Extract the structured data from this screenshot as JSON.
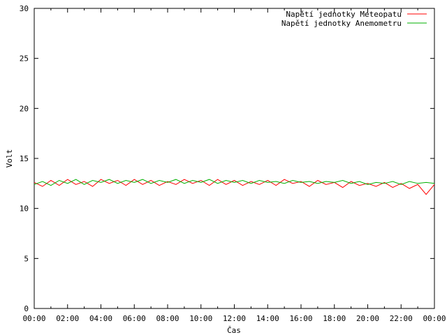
{
  "chart_data": {
    "type": "line",
    "xlabel": "Čas",
    "ylabel": "Volt",
    "ylim": [
      0,
      30
    ],
    "yticks": [
      0,
      5,
      10,
      15,
      20,
      25,
      30
    ],
    "xlim": [
      0,
      24
    ],
    "xticks": [
      {
        "value": 0,
        "label": "00:00"
      },
      {
        "value": 2,
        "label": "02:00"
      },
      {
        "value": 4,
        "label": "04:00"
      },
      {
        "value": 6,
        "label": "06:00"
      },
      {
        "value": 8,
        "label": "08:00"
      },
      {
        "value": 10,
        "label": "10:00"
      },
      {
        "value": 12,
        "label": "12:00"
      },
      {
        "value": 14,
        "label": "14:00"
      },
      {
        "value": 16,
        "label": "16:00"
      },
      {
        "value": 18,
        "label": "18:00"
      },
      {
        "value": 20,
        "label": "20:00"
      },
      {
        "value": 22,
        "label": "22:00"
      },
      {
        "value": 24,
        "label": "00:00"
      }
    ],
    "grid": false,
    "legend_position": "top-right",
    "series": [
      {
        "name": "Napětí jednotky Meteopatu",
        "color": "#ff0000",
        "x": [
          0,
          0.5,
          1,
          1.5,
          2,
          2.5,
          3,
          3.5,
          4,
          4.5,
          5,
          5.5,
          6,
          6.5,
          7,
          7.5,
          8,
          8.5,
          9,
          9.5,
          10,
          10.5,
          11,
          11.5,
          12,
          12.5,
          13,
          13.5,
          14,
          14.5,
          15,
          15.5,
          16,
          16.5,
          17,
          17.5,
          18,
          18.5,
          19,
          19.5,
          20,
          20.5,
          21,
          21.5,
          22,
          22.5,
          23,
          23.5,
          24
        ],
        "y": [
          12.6,
          12.2,
          12.8,
          12.3,
          12.9,
          12.4,
          12.7,
          12.2,
          12.9,
          12.5,
          12.8,
          12.3,
          12.9,
          12.4,
          12.8,
          12.3,
          12.7,
          12.4,
          12.9,
          12.5,
          12.8,
          12.3,
          12.9,
          12.4,
          12.8,
          12.3,
          12.7,
          12.4,
          12.8,
          12.3,
          12.9,
          12.5,
          12.7,
          12.2,
          12.8,
          12.4,
          12.6,
          12.1,
          12.7,
          12.3,
          12.5,
          12.2,
          12.6,
          12.1,
          12.5,
          12.0,
          12.4,
          11.4,
          12.4
        ]
      },
      {
        "name": "Napětí jednotky Anemometru",
        "color": "#00b000",
        "x": [
          0,
          0.5,
          1,
          1.5,
          2,
          2.5,
          3,
          3.5,
          4,
          4.5,
          5,
          5.5,
          6,
          6.5,
          7,
          7.5,
          8,
          8.5,
          9,
          9.5,
          10,
          10.5,
          11,
          11.5,
          12,
          12.5,
          13,
          13.5,
          14,
          14.5,
          15,
          15.5,
          16,
          16.5,
          17,
          17.5,
          18,
          18.5,
          19,
          19.5,
          20,
          20.5,
          21,
          21.5,
          22,
          22.5,
          23,
          23.5,
          24
        ],
        "y": [
          12.4,
          12.7,
          12.3,
          12.8,
          12.5,
          12.9,
          12.4,
          12.8,
          12.6,
          12.9,
          12.5,
          12.8,
          12.6,
          12.9,
          12.5,
          12.8,
          12.6,
          12.9,
          12.5,
          12.8,
          12.6,
          12.9,
          12.5,
          12.8,
          12.6,
          12.8,
          12.5,
          12.8,
          12.6,
          12.7,
          12.5,
          12.8,
          12.6,
          12.7,
          12.5,
          12.7,
          12.6,
          12.8,
          12.5,
          12.7,
          12.4,
          12.6,
          12.5,
          12.7,
          12.4,
          12.7,
          12.5,
          12.6,
          12.5
        ]
      }
    ]
  }
}
